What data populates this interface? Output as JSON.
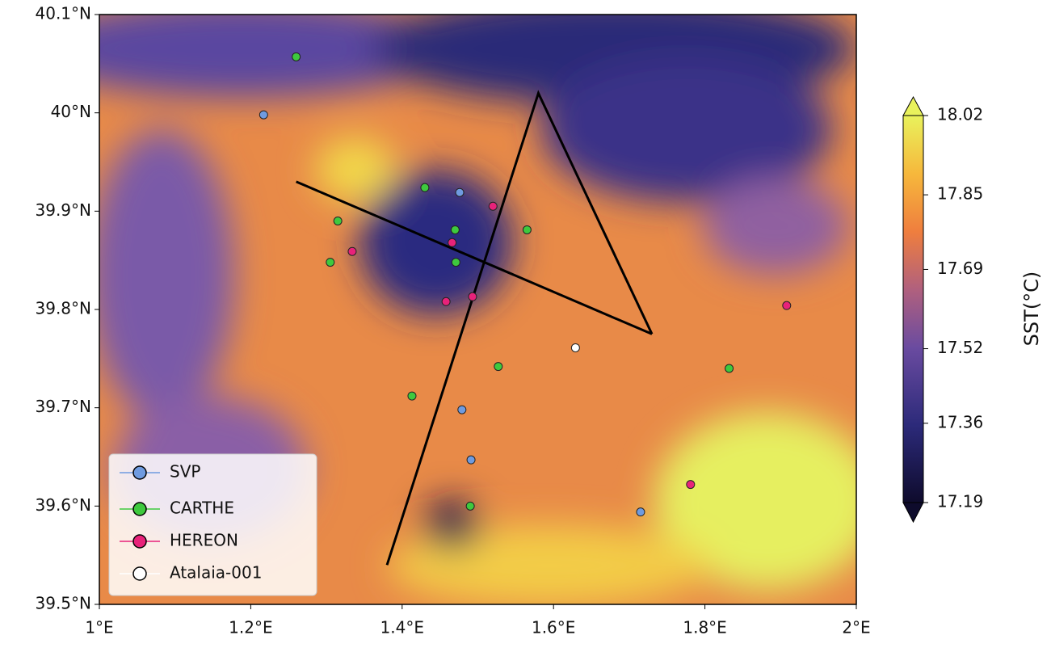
{
  "chart_data": {
    "type": "scatter",
    "xlim": [
      1,
      2
    ],
    "ylim": [
      39.5,
      40.1
    ],
    "xticks": [
      {
        "value": 1,
        "label": "1°E"
      },
      {
        "value": 1.2,
        "label": "1.2°E"
      },
      {
        "value": 1.4,
        "label": "1.4°E"
      },
      {
        "value": 1.6,
        "label": "1.6°E"
      },
      {
        "value": 1.8,
        "label": "1.8°E"
      },
      {
        "value": 2,
        "label": "2°E"
      }
    ],
    "yticks": [
      {
        "value": 39.5,
        "label": "39.5°N"
      },
      {
        "value": 39.6,
        "label": "39.6°N"
      },
      {
        "value": 39.7,
        "label": "39.7°N"
      },
      {
        "value": 39.8,
        "label": "39.8°N"
      },
      {
        "value": 39.9,
        "label": "39.9°N"
      },
      {
        "value": 40,
        "label": "40°N"
      },
      {
        "value": 40.1,
        "label": "40.1°N"
      }
    ],
    "colorbar": {
      "label": "SST(°C)",
      "lim": [
        17.19,
        18.02
      ],
      "ticks": [
        17.19,
        17.36,
        17.52,
        17.69,
        17.85,
        18.02
      ]
    },
    "legend": "lower left",
    "series": [
      {
        "name": "SVP",
        "color": "#6f9be0",
        "x": [
          1.217,
          1.476,
          1.479,
          1.491,
          1.715
        ],
        "y": [
          39.998,
          39.919,
          39.698,
          39.647,
          39.594
        ]
      },
      {
        "name": "CARTHE",
        "color": "#3ec93e",
        "x": [
          1.26,
          1.315,
          1.305,
          1.43,
          1.47,
          1.471,
          1.565,
          1.527,
          1.413,
          1.49,
          1.832
        ],
        "y": [
          40.057,
          39.89,
          39.848,
          39.924,
          39.881,
          39.848,
          39.881,
          39.742,
          39.712,
          39.6,
          39.74
        ]
      },
      {
        "name": "HEREON",
        "color": "#e8227a",
        "x": [
          1.334,
          1.52,
          1.466,
          1.493,
          1.458,
          1.781,
          1.908
        ],
        "y": [
          39.859,
          39.905,
          39.868,
          39.813,
          39.808,
          39.622,
          39.804
        ]
      },
      {
        "name": "Atalaia-001",
        "color": "#ffffff",
        "x": [
          1.629
        ],
        "y": [
          39.761
        ]
      }
    ],
    "transects": [
      {
        "x": [
          1.26,
          1.73
        ],
        "y": [
          39.93,
          39.775
        ]
      },
      {
        "x": [
          1.38,
          1.58,
          1.73
        ],
        "y": [
          39.54,
          40.02,
          39.775
        ]
      }
    ]
  }
}
